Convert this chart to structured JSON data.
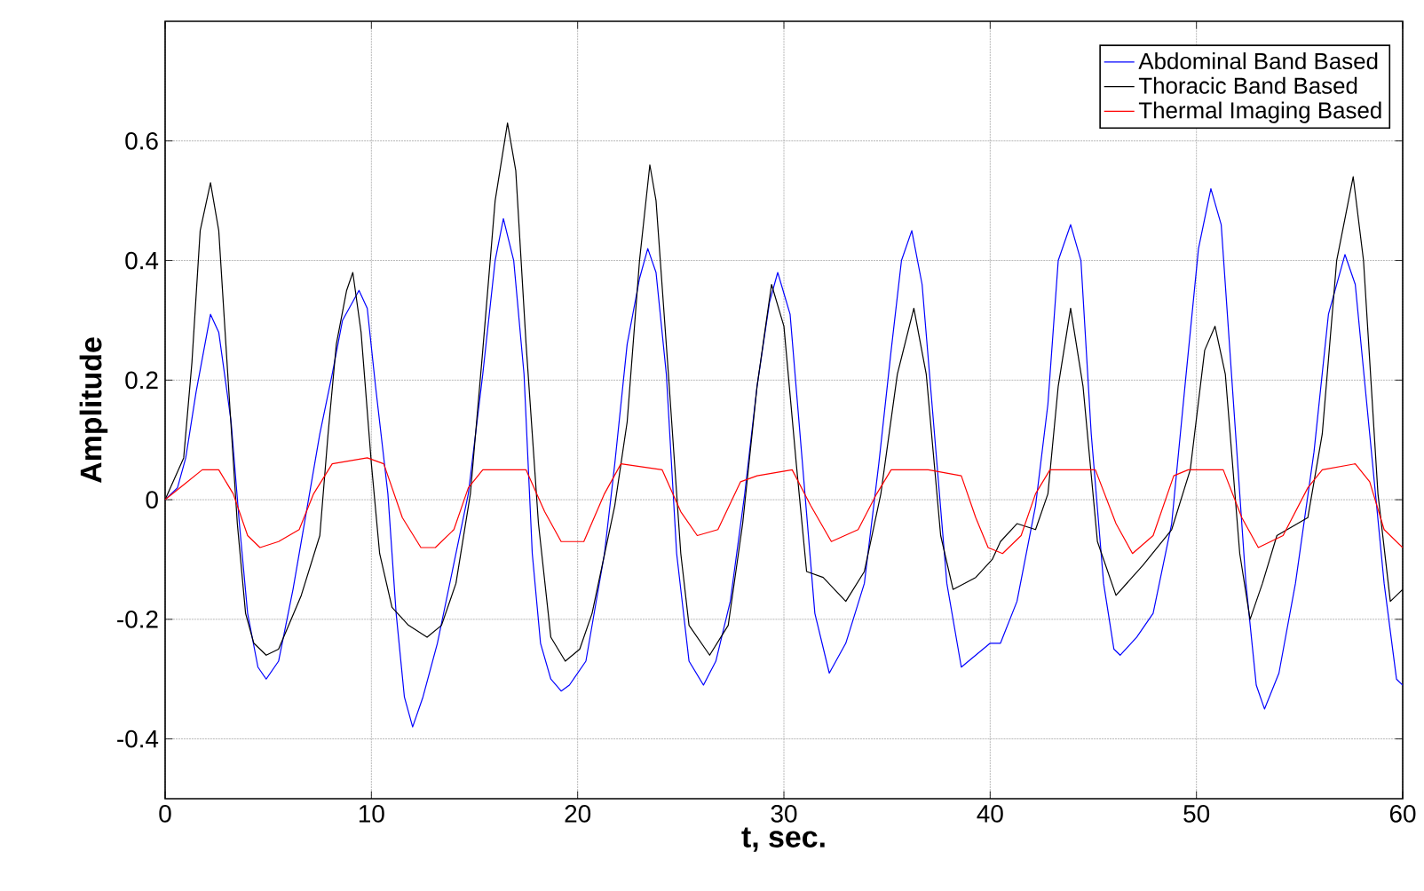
{
  "chart_data": {
    "type": "line",
    "xlabel": "t, sec.",
    "ylabel": "Amplitude",
    "xlim": [
      0,
      60
    ],
    "ylim": [
      -0.5,
      0.8
    ],
    "xticks": [
      0,
      10,
      20,
      30,
      40,
      50,
      60
    ],
    "yticks": [
      -0.4,
      -0.2,
      0,
      0.2,
      0.4,
      0.6
    ],
    "grid": true,
    "legend": "top right",
    "line_style": "solid",
    "marker": "none",
    "series": [
      {
        "name": "Abdominal Band Based",
        "color": "#0000ff",
        "x": [
          0,
          0.6,
          1.0,
          1.5,
          2.2,
          2.6,
          3.2,
          3.6,
          4.0,
          4.5,
          4.9,
          5.5,
          6.2,
          6.9,
          7.5,
          8.1,
          8.6,
          9.4,
          9.8,
          10.2,
          10.8,
          11.2,
          11.6,
          12.0,
          12.5,
          13.2,
          14.1,
          14.7,
          15.4,
          16.0,
          16.4,
          16.9,
          17.4,
          17.8,
          18.2,
          18.7,
          19.2,
          19.6,
          20.4,
          21.3,
          21.8,
          22.4,
          23.0,
          23.4,
          23.8,
          24.3,
          24.8,
          25.4,
          26.1,
          26.7,
          27.4,
          28.1,
          28.7,
          29.3,
          29.7,
          30.3,
          30.9,
          31.5,
          32.2,
          33.0,
          33.9,
          34.6,
          35.2,
          35.7,
          36.2,
          36.7,
          37.3,
          37.9,
          38.6,
          39.3,
          40.0,
          40.5,
          41.3,
          42.2,
          42.8,
          43.3,
          43.9,
          44.4,
          44.9,
          45.5,
          46.0,
          46.3,
          47.1,
          47.9,
          48.8,
          49.5,
          50.1,
          50.7,
          51.2,
          51.8,
          52.4,
          52.9,
          53.3,
          54.0,
          54.8,
          55.7,
          56.4,
          57.2,
          57.7,
          58.4,
          59.1,
          59.7,
          60.0
        ],
        "values": [
          0,
          0.02,
          0.07,
          0.18,
          0.31,
          0.28,
          0.13,
          -0.04,
          -0.19,
          -0.28,
          -0.3,
          -0.27,
          -0.15,
          -0.01,
          0.11,
          0.21,
          0.3,
          0.35,
          0.32,
          0.19,
          0.01,
          -0.19,
          -0.33,
          -0.38,
          -0.33,
          -0.24,
          -0.09,
          0.01,
          0.21,
          0.4,
          0.47,
          0.4,
          0.21,
          -0.09,
          -0.24,
          -0.3,
          -0.32,
          -0.31,
          -0.27,
          -0.09,
          0.06,
          0.26,
          0.37,
          0.42,
          0.38,
          0.21,
          -0.09,
          -0.27,
          -0.31,
          -0.27,
          -0.17,
          0.01,
          0.19,
          0.33,
          0.38,
          0.31,
          0.06,
          -0.19,
          -0.29,
          -0.24,
          -0.14,
          0.06,
          0.25,
          0.4,
          0.45,
          0.36,
          0.11,
          -0.14,
          -0.28,
          -0.26,
          -0.24,
          -0.24,
          -0.17,
          -0.01,
          0.16,
          0.4,
          0.46,
          0.4,
          0.11,
          -0.14,
          -0.25,
          -0.26,
          -0.23,
          -0.19,
          -0.04,
          0.21,
          0.42,
          0.52,
          0.46,
          0.16,
          -0.14,
          -0.31,
          -0.35,
          -0.29,
          -0.14,
          0.08,
          0.31,
          0.41,
          0.36,
          0.11,
          -0.14,
          -0.3,
          -0.31
        ]
      },
      {
        "name": "Thoracic Band Based",
        "color": "#000000",
        "x": [
          0,
          0.9,
          1.3,
          1.7,
          2.2,
          2.6,
          3.0,
          3.5,
          3.9,
          4.3,
          4.9,
          5.5,
          6.6,
          7.5,
          7.9,
          8.3,
          8.8,
          9.1,
          9.5,
          10.0,
          10.4,
          11.0,
          11.8,
          12.7,
          13.4,
          14.1,
          14.8,
          15.4,
          16.0,
          16.6,
          17.0,
          17.5,
          18.1,
          18.7,
          19.4,
          20.1,
          20.7,
          21.8,
          22.4,
          23.0,
          23.5,
          23.8,
          24.4,
          25.0,
          25.4,
          26.4,
          27.3,
          28.0,
          28.7,
          29.4,
          30.0,
          30.6,
          31.1,
          31.9,
          33.0,
          33.9,
          34.7,
          35.5,
          36.3,
          36.9,
          37.6,
          38.2,
          39.3,
          40.1,
          40.5,
          41.3,
          42.2,
          42.8,
          43.3,
          43.9,
          44.5,
          45.2,
          46.1,
          47.4,
          48.8,
          49.7,
          50.4,
          50.9,
          51.4,
          52.1,
          52.6,
          53.2,
          53.9,
          55.4,
          56.1,
          56.8,
          57.6,
          58.1,
          58.8,
          59.4,
          60.0
        ],
        "values": [
          0,
          0.07,
          0.23,
          0.45,
          0.53,
          0.45,
          0.23,
          -0.04,
          -0.19,
          -0.24,
          -0.26,
          -0.25,
          -0.16,
          -0.06,
          0.11,
          0.26,
          0.35,
          0.38,
          0.28,
          0.06,
          -0.09,
          -0.18,
          -0.21,
          -0.23,
          -0.21,
          -0.14,
          0.01,
          0.25,
          0.5,
          0.63,
          0.55,
          0.26,
          -0.04,
          -0.23,
          -0.27,
          -0.25,
          -0.19,
          -0.01,
          0.13,
          0.4,
          0.56,
          0.5,
          0.21,
          -0.09,
          -0.21,
          -0.26,
          -0.21,
          -0.04,
          0.19,
          0.36,
          0.29,
          0.06,
          -0.12,
          -0.13,
          -0.17,
          -0.12,
          0.01,
          0.21,
          0.32,
          0.21,
          -0.06,
          -0.15,
          -0.13,
          -0.1,
          -0.07,
          -0.04,
          -0.05,
          0.01,
          0.19,
          0.32,
          0.19,
          -0.07,
          -0.16,
          -0.11,
          -0.05,
          0.05,
          0.25,
          0.29,
          0.21,
          -0.09,
          -0.2,
          -0.14,
          -0.06,
          -0.03,
          0.11,
          0.4,
          0.54,
          0.4,
          0.01,
          -0.17,
          -0.15
        ]
      },
      {
        "name": "Thermal Imaging Based",
        "color": "#ff0000",
        "x": [
          0,
          0.9,
          1.8,
          2.6,
          3.3,
          4.0,
          4.6,
          5.5,
          6.5,
          7.2,
          8.1,
          9.8,
          10.6,
          11.5,
          12.4,
          13.1,
          14.0,
          14.7,
          15.4,
          17.5,
          18.4,
          19.2,
          20.3,
          21.3,
          22.1,
          24.1,
          25.0,
          25.8,
          26.8,
          27.9,
          28.7,
          30.4,
          31.3,
          32.3,
          33.6,
          34.5,
          35.2,
          37.0,
          38.6,
          39.3,
          39.9,
          40.6,
          41.5,
          42.2,
          42.9,
          45.1,
          46.1,
          46.9,
          47.9,
          48.9,
          49.6,
          51.3,
          52.2,
          53.0,
          54.2,
          55.4,
          56.1,
          57.7,
          58.4,
          59.1,
          60.0
        ],
        "values": [
          0,
          0.025,
          0.05,
          0.05,
          0.01,
          -0.06,
          -0.08,
          -0.07,
          -0.05,
          0.01,
          0.06,
          0.07,
          0.06,
          -0.03,
          -0.08,
          -0.08,
          -0.05,
          0.02,
          0.05,
          0.05,
          -0.02,
          -0.07,
          -0.07,
          0.01,
          0.06,
          0.05,
          -0.02,
          -0.06,
          -0.05,
          0.03,
          0.04,
          0.05,
          -0.01,
          -0.07,
          -0.05,
          0.01,
          0.05,
          0.05,
          0.04,
          -0.03,
          -0.08,
          -0.09,
          -0.06,
          0.01,
          0.05,
          0.05,
          -0.04,
          -0.09,
          -0.06,
          0.04,
          0.05,
          0.05,
          -0.03,
          -0.08,
          -0.06,
          0.02,
          0.05,
          0.06,
          0.03,
          -0.05,
          -0.08
        ]
      }
    ]
  }
}
